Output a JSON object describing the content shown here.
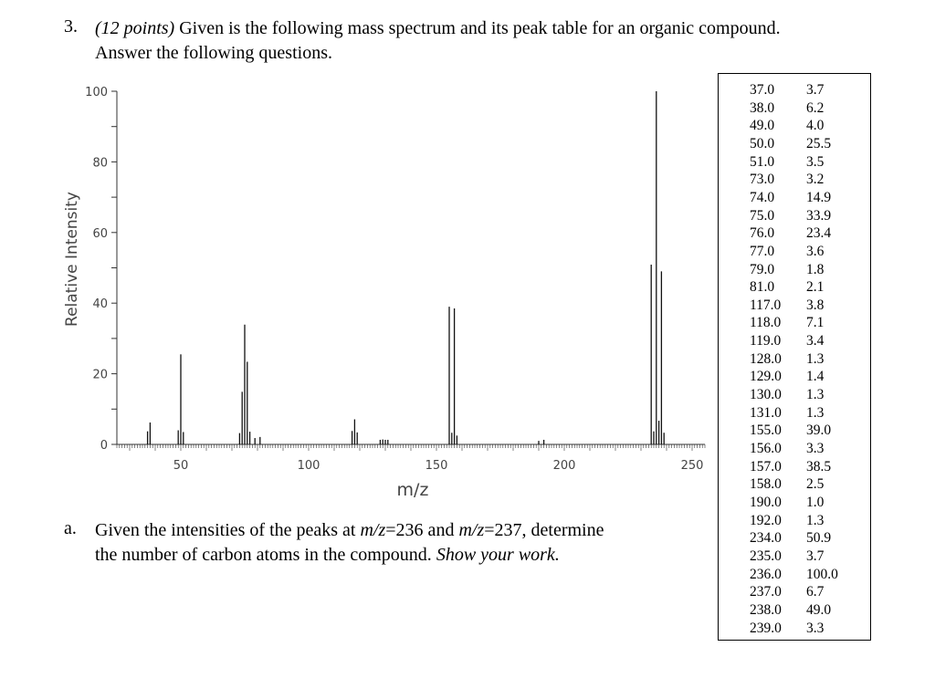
{
  "question": {
    "number": "3.",
    "points": "(12 points)",
    "text_line1": " Given is the following mass spectrum and its peak table for an organic compound.",
    "text_line2": "Answer the following questions."
  },
  "part_a": {
    "label": "a.",
    "line1_prefix": "Given the intensities of the peaks at ",
    "mz1": "m/z",
    "mz1_val": "=236 and ",
    "mz2": "m/z",
    "mz2_val": "=237, determine",
    "line2_prefix": "the number of carbon atoms in the compound. ",
    "line2_emph": "Show your work."
  },
  "chart_data": {
    "type": "bar",
    "title": "",
    "xlabel": "m/z",
    "ylabel": "Relative Intensity",
    "xlim": [
      25,
      255
    ],
    "ylim": [
      0,
      100
    ],
    "x_ticks": [
      50,
      100,
      150,
      200,
      250
    ],
    "y_ticks": [
      0,
      20,
      40,
      60,
      80,
      100
    ],
    "x": [
      37.0,
      38.0,
      49.0,
      50.0,
      51.0,
      73.0,
      74.0,
      75.0,
      76.0,
      77.0,
      79.0,
      81.0,
      117.0,
      118.0,
      119.0,
      128.0,
      129.0,
      130.0,
      131.0,
      155.0,
      156.0,
      157.0,
      158.0,
      190.0,
      192.0,
      234.0,
      235.0,
      236.0,
      237.0,
      238.0,
      239.0
    ],
    "values": [
      3.7,
      6.2,
      4.0,
      25.5,
      3.5,
      3.2,
      14.9,
      33.9,
      23.4,
      3.6,
      1.8,
      2.1,
      3.8,
      7.1,
      3.4,
      1.3,
      1.4,
      1.3,
      1.3,
      39.0,
      3.3,
      38.5,
      2.5,
      1.0,
      1.3,
      50.9,
      3.7,
      100.0,
      6.7,
      49.0,
      3.3
    ]
  },
  "peak_table": {
    "rows": [
      [
        "37.0",
        "3.7"
      ],
      [
        "38.0",
        "6.2"
      ],
      [
        "49.0",
        "4.0"
      ],
      [
        "50.0",
        "25.5"
      ],
      [
        "51.0",
        "3.5"
      ],
      [
        "73.0",
        "3.2"
      ],
      [
        "74.0",
        "14.9"
      ],
      [
        "75.0",
        "33.9"
      ],
      [
        "76.0",
        "23.4"
      ],
      [
        "77.0",
        "3.6"
      ],
      [
        "79.0",
        "1.8"
      ],
      [
        "81.0",
        "2.1"
      ],
      [
        "117.0",
        "3.8"
      ],
      [
        "118.0",
        "7.1"
      ],
      [
        "119.0",
        "3.4"
      ],
      [
        "128.0",
        "1.3"
      ],
      [
        "129.0",
        "1.4"
      ],
      [
        "130.0",
        "1.3"
      ],
      [
        "131.0",
        "1.3"
      ],
      [
        "155.0",
        "39.0"
      ],
      [
        "156.0",
        "3.3"
      ],
      [
        "157.0",
        "38.5"
      ],
      [
        "158.0",
        "2.5"
      ],
      [
        "190.0",
        "1.0"
      ],
      [
        "192.0",
        "1.3"
      ],
      [
        "234.0",
        "50.9"
      ],
      [
        "235.0",
        "3.7"
      ],
      [
        "236.0",
        "100.0"
      ],
      [
        "237.0",
        "6.7"
      ],
      [
        "238.0",
        "49.0"
      ],
      [
        "239.0",
        "3.3"
      ]
    ]
  }
}
